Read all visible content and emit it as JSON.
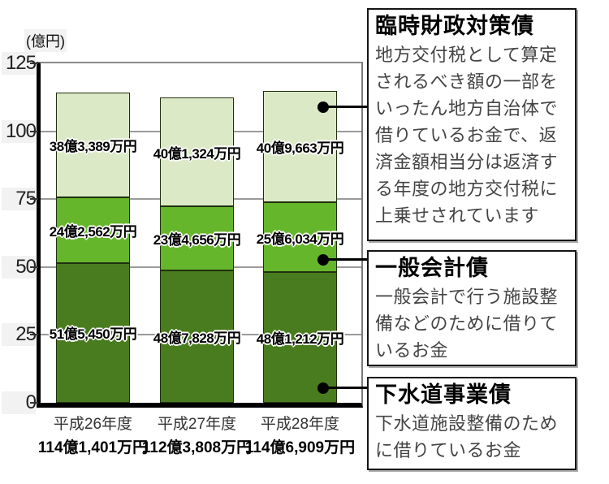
{
  "chart_data": {
    "type": "bar",
    "stacked": true,
    "title": "",
    "y_unit_label": "(億円)",
    "ylabel": "億円",
    "ylim": [
      0,
      125
    ],
    "yticks": [
      0,
      25,
      50,
      75,
      100,
      125
    ],
    "grid": true,
    "legend_position": "right-callout-boxes",
    "categories": [
      "平成26年度",
      "平成27年度",
      "平成28年度"
    ],
    "category_totals": [
      "114億1,401万円",
      "112億3,808万円",
      "114億6,909万円"
    ],
    "series": [
      {
        "name": "下水道事業債",
        "color": "#497c1e",
        "values": [
          51.545,
          48.7828,
          48.1212
        ],
        "value_labels": [
          "51億5,450万円",
          "48億7,828万円",
          "48億1,212万円"
        ]
      },
      {
        "name": "一般会計債",
        "color": "#66b62c",
        "values": [
          24.2562,
          23.4656,
          25.6034
        ],
        "value_labels": [
          "24億2,562万円",
          "23億4,656万円",
          "25億6,034万円"
        ]
      },
      {
        "name": "臨時財政対策債",
        "color": "#dbe9c6",
        "values": [
          38.3389,
          40.1324,
          40.9663
        ],
        "value_labels": [
          "38億3,389万円",
          "40億1,324万円",
          "40億9,663万円"
        ]
      }
    ]
  },
  "annotations": [
    {
      "title": "臨時財政対策債",
      "body": "地方交付税として算定\nされるべき額の一部を\nいったん地方自治体で\n借りているお金で、返\n済金額相当分は返済す\nる年度の地方交付税に\n上乗せされています"
    },
    {
      "title": "一般会計債",
      "body": "一般会計で行う施設整\n備などのために借りて\nいるお金"
    },
    {
      "title": "下水道事業債",
      "body": "下水道施設整備のため\nに借りているお金"
    }
  ],
  "colors": {
    "sewer_bond": "#497c1e",
    "general_account_bond": "#66b62c",
    "extraordinary_bond": "#dbe9c6",
    "grid": "#9a9a9a",
    "axis": "#000000",
    "connector": "#000000"
  }
}
